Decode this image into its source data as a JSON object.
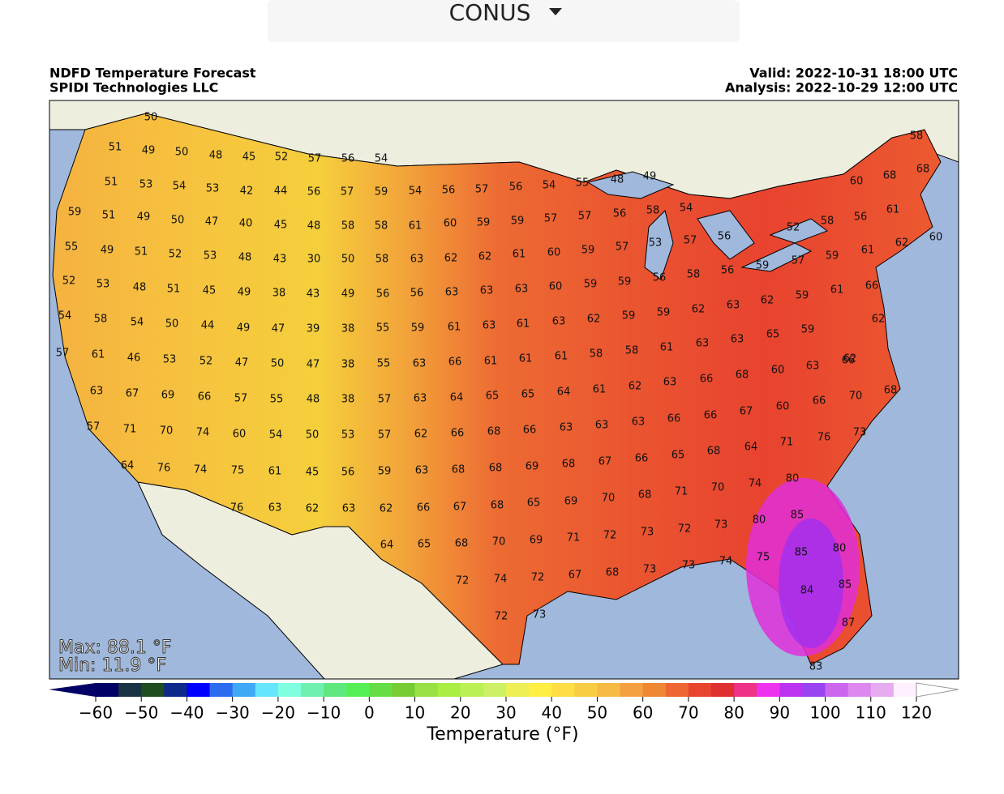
{
  "dropdown": {
    "label": "CONUS"
  },
  "header": {
    "title": "NDFD Temperature Forecast",
    "org": "SPIDI Technologies LLC",
    "valid": "Valid: 2022-10-31 18:00 UTC",
    "analysis": "Analysis: 2022-10-29 12:00 UTC"
  },
  "stats": {
    "max": "Max: 88.1 °F",
    "min": "Min: 11.9 °F"
  },
  "colorbar": {
    "label": "Temperature (°F)",
    "ticks": [
      {
        "value": -60,
        "label": "−60"
      },
      {
        "value": -50,
        "label": "−50"
      },
      {
        "value": -40,
        "label": "−40"
      },
      {
        "value": -30,
        "label": "−30"
      },
      {
        "value": -20,
        "label": "−20"
      },
      {
        "value": -10,
        "label": "−10"
      },
      0,
      10,
      20,
      30,
      40,
      50,
      60,
      70,
      80,
      90,
      100,
      110,
      120
    ]
  },
  "stations": [
    50,
    51,
    49,
    50,
    48,
    45,
    52,
    57,
    56,
    54,
    51,
    53,
    54,
    53,
    42,
    44,
    56,
    57,
    59,
    54,
    56,
    57,
    56,
    54,
    55,
    48,
    49,
    59,
    51,
    49,
    50,
    47,
    40,
    45,
    48,
    58,
    58,
    61,
    60,
    59,
    59,
    57,
    57,
    56,
    58,
    54,
    55,
    49,
    51,
    52,
    53,
    48,
    43,
    30,
    50,
    58,
    63,
    62,
    62,
    61,
    60,
    59,
    57,
    53,
    57,
    56,
    52,
    53,
    48,
    51,
    45,
    49,
    38,
    43,
    49,
    56,
    56,
    63,
    63,
    63,
    60,
    59,
    59,
    56,
    58,
    56,
    59,
    54,
    58,
    54,
    50,
    44,
    49,
    47,
    39,
    38,
    55,
    59,
    61,
    63,
    61,
    63,
    62,
    59,
    59,
    62,
    63,
    62,
    59,
    61,
    57,
    61,
    46,
    53,
    52,
    47,
    50,
    47,
    38,
    55,
    63,
    66,
    61,
    61,
    61,
    58,
    58,
    61,
    63,
    63,
    65,
    59,
    62,
    63,
    67,
    69,
    66,
    57,
    55,
    48,
    38,
    57,
    63,
    64,
    65,
    65,
    64,
    61,
    62,
    63,
    66,
    68,
    60,
    63,
    66,
    57,
    71,
    70,
    74,
    60,
    54,
    50,
    53,
    57,
    62,
    66,
    68,
    66,
    63,
    63,
    63,
    66,
    66,
    67,
    60,
    66,
    70,
    68,
    64,
    76,
    74,
    75,
    61,
    45,
    56,
    59,
    63,
    68,
    68,
    69,
    68,
    67,
    66,
    65,
    68,
    64,
    71,
    76,
    73,
    76,
    63,
    62,
    63,
    62,
    66,
    67,
    68,
    65,
    69,
    70,
    68,
    71,
    70,
    74,
    80,
    64,
    65,
    68,
    70,
    69,
    71,
    72,
    73,
    72,
    73,
    80,
    85,
    72,
    74,
    72,
    67,
    68,
    73,
    73,
    74,
    75,
    85,
    80,
    72,
    73,
    84,
    85,
    87,
    83,
    58,
    68,
    60,
    68,
    58,
    56,
    52,
    57,
    59,
    61,
    62,
    60,
    61,
    66,
    62
  ]
}
